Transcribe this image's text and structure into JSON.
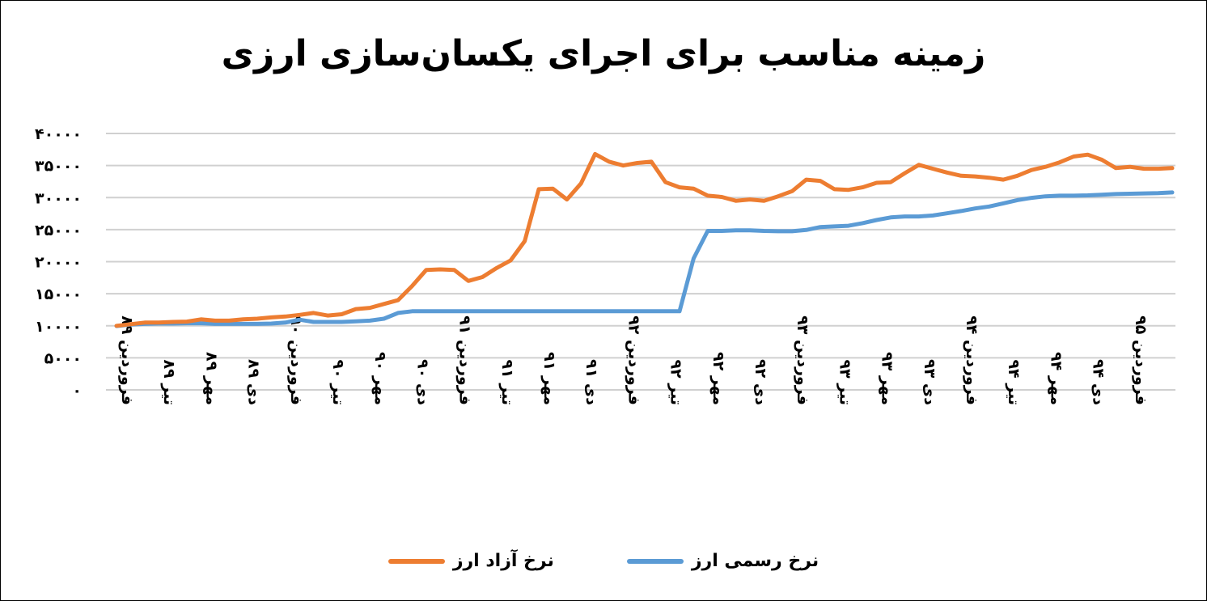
{
  "chart_data": {
    "type": "line",
    "title": "زمینه مناسب برای اجرای یکسان‌سازی ارزی",
    "ylim": [
      0,
      40000
    ],
    "yticks": [
      "۰",
      "۵۰۰۰",
      "۱۰۰۰۰",
      "۱۵۰۰۰",
      "۲۰۰۰۰",
      "۲۵۰۰۰",
      "۳۰۰۰۰",
      "۳۵۰۰۰",
      "۴۰۰۰۰"
    ],
    "ytick_values": [
      0,
      5000,
      10000,
      15000,
      20000,
      25000,
      30000,
      35000,
      40000
    ],
    "xtick_labels": [
      "فروردین ۸۹",
      "تیر ۸۹",
      "مهر ۸۹",
      "دی ۸۹",
      "فروردین ۹۰",
      "تیر ۹۰",
      "مهر ۹۰",
      "دی ۹۰",
      "فروردین ۹۱",
      "تیر ۹۱",
      "مهر ۹۱",
      "دی ۹۱",
      "فروردین ۹۲",
      "تیر ۹۲",
      "مهر ۹۲",
      "دی ۹۲",
      "فروردین ۹۳",
      "تیر ۹۳",
      "مهر ۹۳",
      "دی ۹۳",
      "فروردین ۹۴",
      "تیر ۹۴",
      "مهر ۹۴",
      "دی ۹۴",
      "فروردین ۹۵"
    ],
    "grid": true,
    "legend_position": "bottom",
    "series": [
      {
        "name": "نرخ رسمی ارز",
        "color": "#5b9bd5",
        "values": [
          9950,
          10200,
          10300,
          10350,
          10350,
          10400,
          10400,
          10300,
          10300,
          10300,
          10300,
          10350,
          10500,
          10950,
          10600,
          10600,
          10600,
          10700,
          10800,
          11100,
          12000,
          12260,
          12260,
          12260,
          12260,
          12260,
          12260,
          12260,
          12260,
          12260,
          12260,
          12260,
          12260,
          12260,
          12260,
          12260,
          12260,
          12260,
          12260,
          12260,
          12260,
          20500,
          24800,
          24800,
          24900,
          24900,
          24800,
          24750,
          24750,
          24950,
          25400,
          25500,
          25600,
          26000,
          26500,
          26900,
          27050,
          27050,
          27200,
          27550,
          27900,
          28300,
          28600,
          29100,
          29600,
          29950,
          30200,
          30300,
          30300,
          30350,
          30450,
          30550,
          30600,
          30650,
          30700,
          30800
        ]
      },
      {
        "name": "نرخ آزاد ارز",
        "color": "#ed7d31",
        "values": [
          10000,
          10250,
          10500,
          10500,
          10600,
          10650,
          11000,
          10800,
          10800,
          11000,
          11100,
          11300,
          11450,
          11700,
          12000,
          11600,
          11800,
          12600,
          12800,
          13400,
          14000,
          16200,
          18700,
          18800,
          18700,
          17000,
          17600,
          19000,
          20200,
          23200,
          31300,
          31400,
          29700,
          32200,
          36800,
          35600,
          35000,
          35400,
          35600,
          32400,
          31600,
          31400,
          30300,
          30100,
          29500,
          29700,
          29500,
          30200,
          31000,
          32800,
          32600,
          31300,
          31200,
          31600,
          32300,
          32400,
          33800,
          35100,
          34500,
          33900,
          33400,
          33300,
          33100,
          32800,
          33400,
          34300,
          34800,
          35500,
          36400,
          36700,
          35900,
          34600,
          34800,
          34500,
          34500,
          34600
        ]
      }
    ]
  }
}
